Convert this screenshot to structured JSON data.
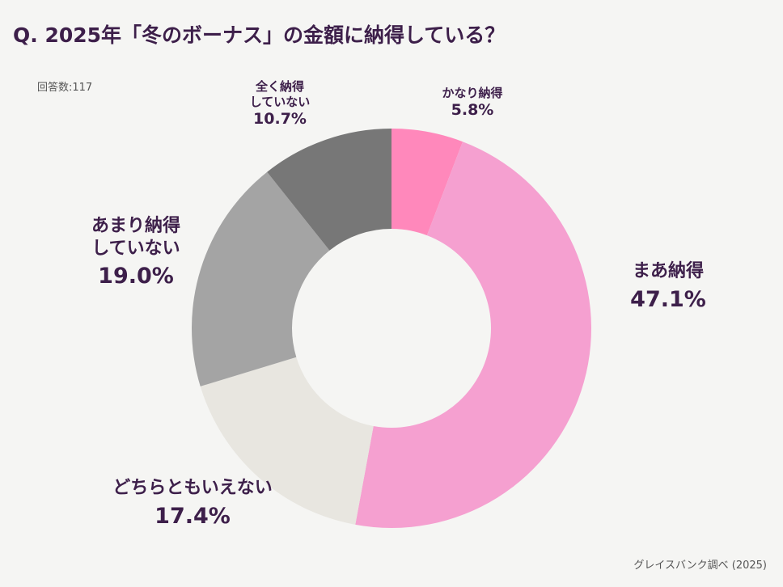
{
  "title": "Q. 2025年「冬のボーナス」の金額に納得している？",
  "respondents": "回答数:117",
  "source": "グレイスバンク調べ (2025)",
  "chart_data": {
    "type": "pie",
    "donut": true,
    "title": "Q. 2025年「冬のボーナス」の金額に納得している？",
    "slices": [
      {
        "label": "かなり納得",
        "value": 5.8,
        "value_label": "5.8%",
        "color": "#ff88bb"
      },
      {
        "label": "まあ納得",
        "value": 47.1,
        "value_label": "47.1%",
        "color": "#f5a0d0"
      },
      {
        "label": "どちらともいえない",
        "value": 17.4,
        "value_label": "17.4%",
        "color": "#e8e6e0"
      },
      {
        "label": "あまり納得していない",
        "value": 19.0,
        "value_label": "19.0%",
        "color": "#a4a4a4"
      },
      {
        "label": "全く納得していない",
        "value": 10.7,
        "value_label": "10.7%",
        "color": "#777777"
      }
    ],
    "start_angle": "top",
    "direction": "clockwise"
  },
  "labels": [
    {
      "line1": "かなり納得",
      "line2": "",
      "pct": "5.8%"
    },
    {
      "line1": "まあ納得",
      "line2": "",
      "pct": "47.1%"
    },
    {
      "line1": "どちらともいえない",
      "line2": "",
      "pct": "17.4%"
    },
    {
      "line1": "あまり納得",
      "line2": "していない",
      "pct": "19.0%"
    },
    {
      "line1": "全く納得",
      "line2": "していない",
      "pct": "10.7%"
    }
  ]
}
